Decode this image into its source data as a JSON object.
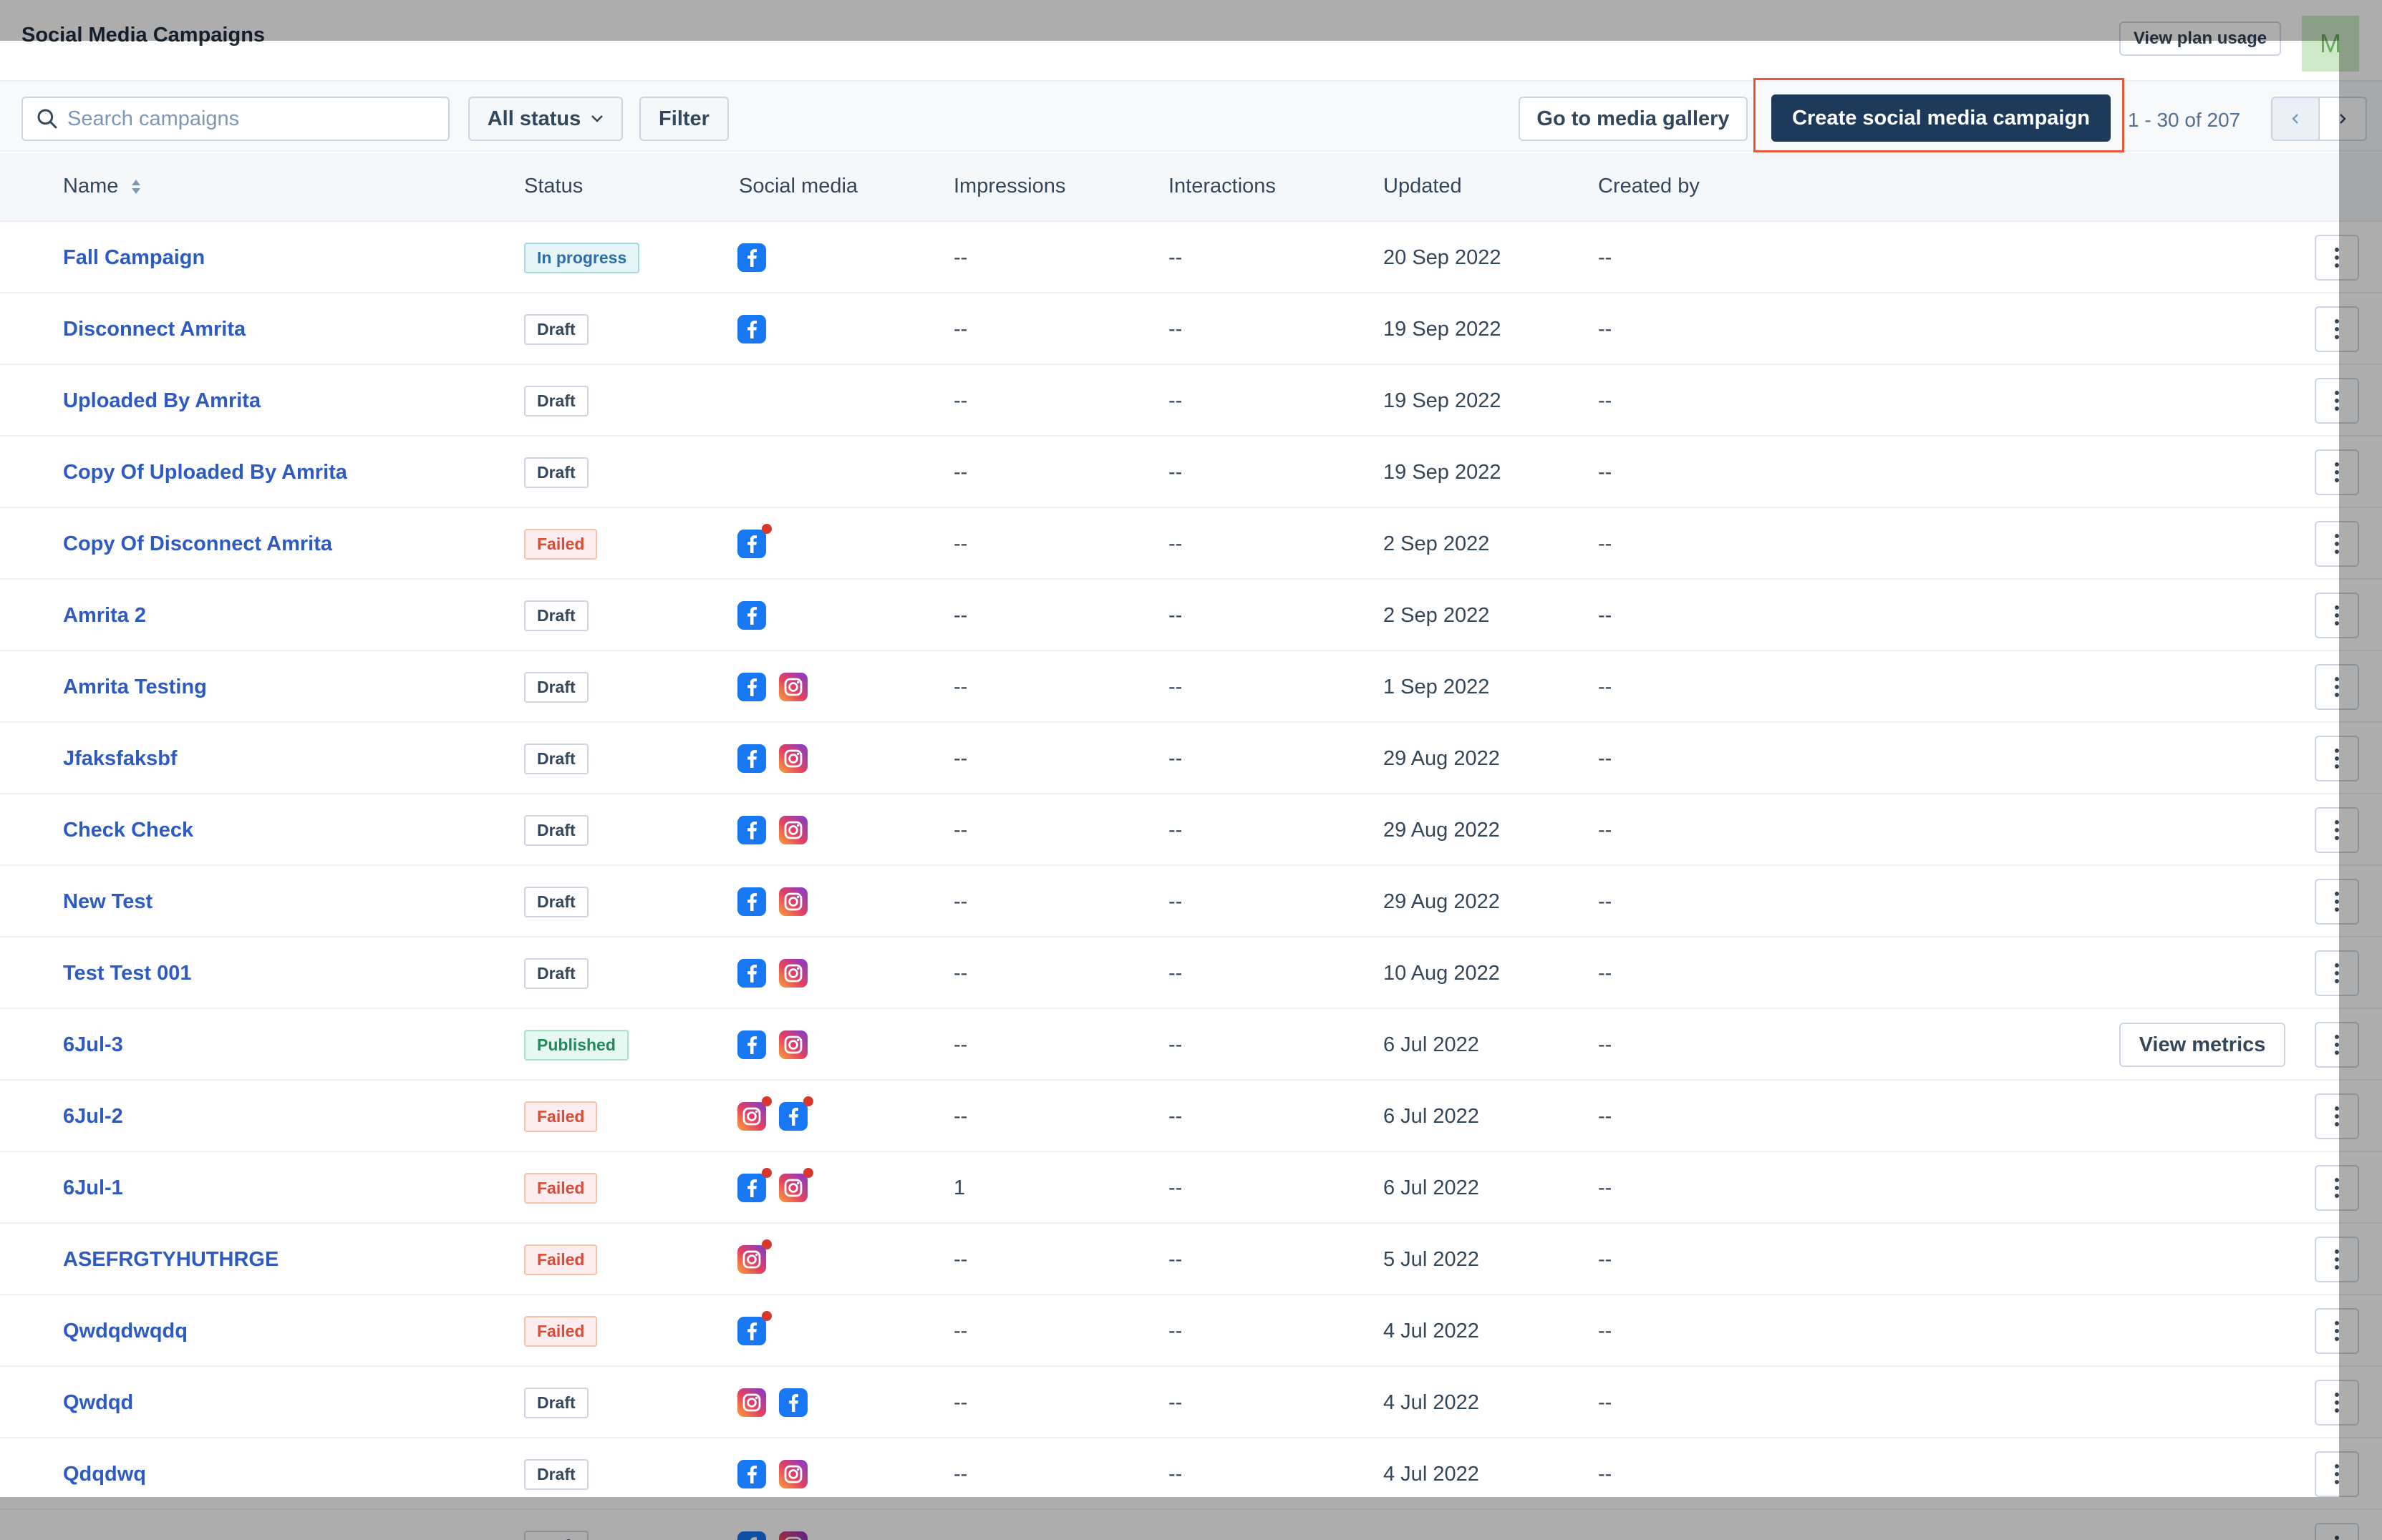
{
  "header": {
    "title": "Social Media Campaigns",
    "plan_button": "View plan usage",
    "avatar_initial": "M"
  },
  "toolbar": {
    "search_placeholder": "Search campaigns",
    "status_filter": "All status",
    "filter_button": "Filter",
    "gallery_button": "Go to media gallery",
    "create_button": "Create social media campaign",
    "pagination": "1 - 30 of 207"
  },
  "table": {
    "columns": [
      "Name",
      "Status",
      "Social media",
      "Impressions",
      "Interactions",
      "Updated",
      "Created by"
    ],
    "row_action": "View metrics",
    "rows": [
      {
        "name": "Fall Campaign",
        "status": "In progress",
        "status_type": "progress",
        "social": [
          {
            "net": "facebook",
            "error": false
          }
        ],
        "impressions": "--",
        "interactions": "--",
        "updated": "20 Sep 2022",
        "created_by": "--"
      },
      {
        "name": "Disconnect Amrita",
        "status": "Draft",
        "status_type": "draft",
        "social": [
          {
            "net": "facebook",
            "error": false
          }
        ],
        "impressions": "--",
        "interactions": "--",
        "updated": "19 Sep 2022",
        "created_by": "--"
      },
      {
        "name": "Uploaded By Amrita",
        "status": "Draft",
        "status_type": "draft",
        "social": [],
        "impressions": "--",
        "interactions": "--",
        "updated": "19 Sep 2022",
        "created_by": "--"
      },
      {
        "name": "Copy Of Uploaded By Amrita",
        "status": "Draft",
        "status_type": "draft",
        "social": [],
        "impressions": "--",
        "interactions": "--",
        "updated": "19 Sep 2022",
        "created_by": "--"
      },
      {
        "name": "Copy Of Disconnect Amrita",
        "status": "Failed",
        "status_type": "failed",
        "social": [
          {
            "net": "facebook",
            "error": true
          }
        ],
        "impressions": "--",
        "interactions": "--",
        "updated": "2 Sep 2022",
        "created_by": "--"
      },
      {
        "name": "Amrita 2",
        "status": "Draft",
        "status_type": "draft",
        "social": [
          {
            "net": "facebook",
            "error": false
          }
        ],
        "impressions": "--",
        "interactions": "--",
        "updated": "2 Sep 2022",
        "created_by": "--"
      },
      {
        "name": "Amrita Testing",
        "status": "Draft",
        "status_type": "draft",
        "social": [
          {
            "net": "facebook",
            "error": false
          },
          {
            "net": "instagram",
            "error": false
          }
        ],
        "impressions": "--",
        "interactions": "--",
        "updated": "1 Sep 2022",
        "created_by": "--"
      },
      {
        "name": "Jfaksfaksbf",
        "status": "Draft",
        "status_type": "draft",
        "social": [
          {
            "net": "facebook",
            "error": false
          },
          {
            "net": "instagram",
            "error": false
          }
        ],
        "impressions": "--",
        "interactions": "--",
        "updated": "29 Aug 2022",
        "created_by": "--"
      },
      {
        "name": "Check Check",
        "status": "Draft",
        "status_type": "draft",
        "social": [
          {
            "net": "facebook",
            "error": false
          },
          {
            "net": "instagram",
            "error": false
          }
        ],
        "impressions": "--",
        "interactions": "--",
        "updated": "29 Aug 2022",
        "created_by": "--"
      },
      {
        "name": "New Test",
        "status": "Draft",
        "status_type": "draft",
        "social": [
          {
            "net": "facebook",
            "error": false
          },
          {
            "net": "instagram",
            "error": false
          }
        ],
        "impressions": "--",
        "interactions": "--",
        "updated": "29 Aug 2022",
        "created_by": "--"
      },
      {
        "name": "Test Test 001",
        "status": "Draft",
        "status_type": "draft",
        "social": [
          {
            "net": "facebook",
            "error": false
          },
          {
            "net": "instagram",
            "error": false
          }
        ],
        "impressions": "--",
        "interactions": "--",
        "updated": "10 Aug 2022",
        "created_by": "--"
      },
      {
        "name": "6Jul-3",
        "status": "Published",
        "status_type": "published",
        "social": [
          {
            "net": "facebook",
            "error": false
          },
          {
            "net": "instagram",
            "error": false
          }
        ],
        "impressions": "--",
        "interactions": "--",
        "updated": "6 Jul 2022",
        "created_by": "--",
        "show_metrics": true
      },
      {
        "name": "6Jul-2",
        "status": "Failed",
        "status_type": "failed",
        "social": [
          {
            "net": "instagram",
            "error": true
          },
          {
            "net": "facebook",
            "error": true
          }
        ],
        "impressions": "--",
        "interactions": "--",
        "updated": "6 Jul 2022",
        "created_by": "--"
      },
      {
        "name": "6Jul-1",
        "status": "Failed",
        "status_type": "failed",
        "social": [
          {
            "net": "facebook",
            "error": true
          },
          {
            "net": "instagram",
            "error": true
          }
        ],
        "impressions": "1",
        "interactions": "--",
        "updated": "6 Jul 2022",
        "created_by": "--"
      },
      {
        "name": "ASEFRGTYHUTHRGE",
        "status": "Failed",
        "status_type": "failed",
        "social": [
          {
            "net": "instagram",
            "error": true
          }
        ],
        "impressions": "--",
        "interactions": "--",
        "updated": "5 Jul 2022",
        "created_by": "--"
      },
      {
        "name": "Qwdqdwqdq",
        "status": "Failed",
        "status_type": "failed",
        "social": [
          {
            "net": "facebook",
            "error": true
          }
        ],
        "impressions": "--",
        "interactions": "--",
        "updated": "4 Jul 2022",
        "created_by": "--"
      },
      {
        "name": "Qwdqd",
        "status": "Draft",
        "status_type": "draft",
        "social": [
          {
            "net": "instagram",
            "error": false
          },
          {
            "net": "facebook",
            "error": false
          }
        ],
        "impressions": "--",
        "interactions": "--",
        "updated": "4 Jul 2022",
        "created_by": "--"
      },
      {
        "name": "Qdqdwq",
        "status": "Draft",
        "status_type": "draft",
        "social": [
          {
            "net": "facebook",
            "error": false
          },
          {
            "net": "instagram",
            "error": false
          }
        ],
        "impressions": "--",
        "interactions": "--",
        "updated": "4 Jul 2022",
        "created_by": "--"
      },
      {
        "name": "",
        "status": "Draft",
        "status_type": "draft",
        "social": [
          {
            "net": "facebook",
            "error": false
          },
          {
            "net": "instagram",
            "error": false
          }
        ],
        "impressions": "",
        "interactions": "",
        "updated": "",
        "created_by": ""
      }
    ]
  },
  "colors": {
    "link": "#2e5bc2",
    "primary_button": "#1e3a5a",
    "highlight_outline": "#e8573a",
    "facebook": "#1877f2",
    "error_dot": "#d7382b"
  }
}
